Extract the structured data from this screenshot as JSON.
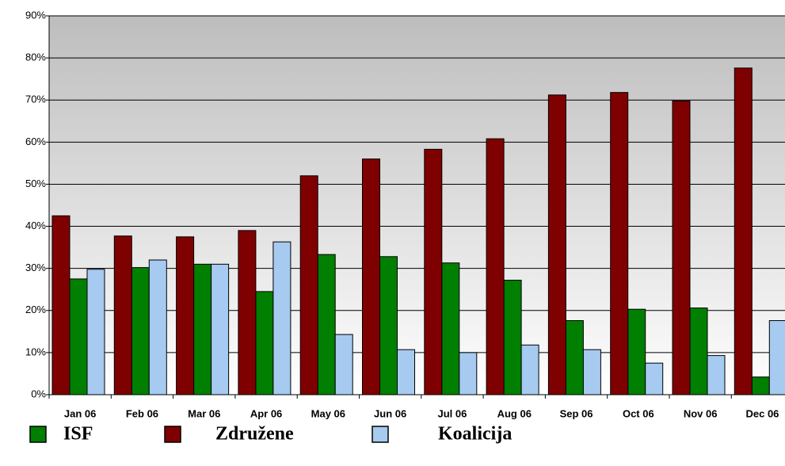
{
  "chart_data": {
    "type": "bar",
    "categories": [
      "Jan 06",
      "Feb 06",
      "Mar 06",
      "Apr 06",
      "May 06",
      "Jun 06",
      "Jul 06",
      "Aug 06",
      "Sep 06",
      "Oct 06",
      "Nov 06",
      "Dec 06"
    ],
    "series": [
      {
        "name": "ISF",
        "color": "#007f00",
        "values": [
          27.5,
          30.2,
          31,
          24.5,
          33.3,
          32.8,
          31.3,
          27.2,
          17.6,
          20.3,
          20.6,
          4.2
        ]
      },
      {
        "name": "Združene",
        "color": "#7f0000",
        "values": [
          42.5,
          37.7,
          37.5,
          39,
          52,
          56,
          58.3,
          60.8,
          71.2,
          71.8,
          69.8,
          77.6
        ]
      },
      {
        "name": "Koalicija",
        "color": "#a6caf0",
        "values": [
          29.8,
          32,
          31,
          36.3,
          14.3,
          10.7,
          10,
          11.8,
          10.7,
          7.5,
          9.3,
          17.6
        ]
      }
    ],
    "ylim": [
      0,
      90
    ],
    "yticks": [
      {
        "value": 0,
        "label": "0%"
      },
      {
        "value": 10,
        "label": "10%"
      },
      {
        "value": 20,
        "label": "20%"
      },
      {
        "value": 30,
        "label": "30%"
      },
      {
        "value": 40,
        "label": "40%"
      },
      {
        "value": 50,
        "label": "50%"
      },
      {
        "value": 60,
        "label": "60%"
      },
      {
        "value": 70,
        "label": "70%"
      },
      {
        "value": 80,
        "label": "80%"
      },
      {
        "value": 90,
        "label": "90%"
      }
    ],
    "grid": true,
    "legend": "bottom"
  }
}
